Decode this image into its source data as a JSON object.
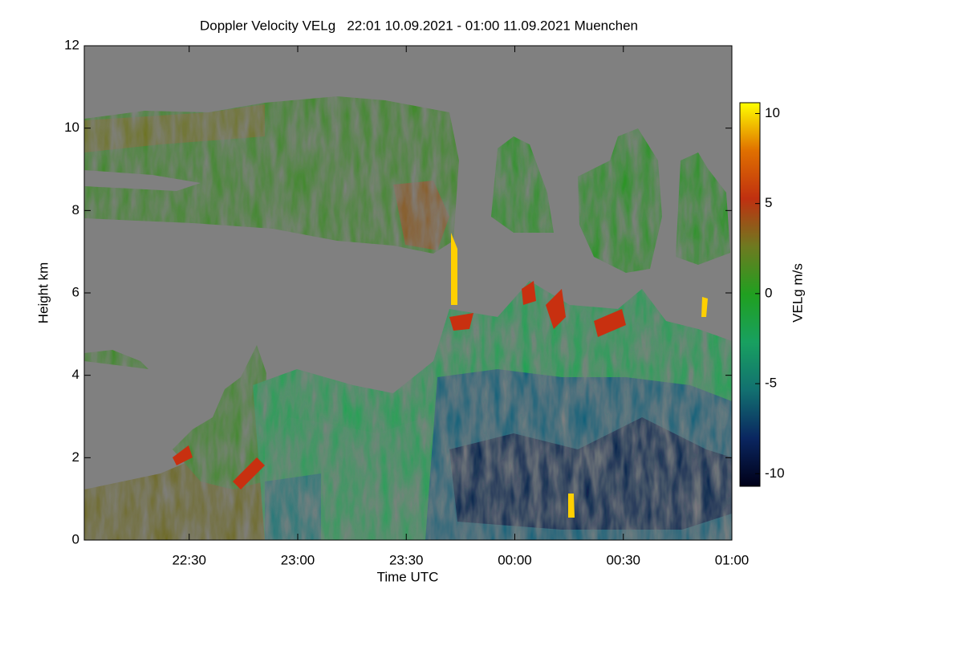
{
  "chart_data": {
    "type": "heatmap",
    "title": "Doppler Velocity VELg   22:01 10.09.2021 - 01:00 11.09.2021 Muenchen",
    "x_label": "Time UTC",
    "y_label": "Height km",
    "colorbar_label": "VELg m/s",
    "xlim": [
      1,
      180
    ],
    "xticks": [
      {
        "value": 30,
        "label": "22:30"
      },
      {
        "value": 60,
        "label": "23:00"
      },
      {
        "value": 90,
        "label": "23:30"
      },
      {
        "value": 120,
        "label": "00:00"
      },
      {
        "value": 150,
        "label": "00:30"
      },
      {
        "value": 180,
        "label": "01:00"
      }
    ],
    "ylim": [
      0,
      12
    ],
    "yticks": [
      0,
      2,
      4,
      6,
      8,
      10,
      12
    ],
    "clim": [
      -10.7,
      10.6
    ],
    "cticks": [
      -10,
      -5,
      0,
      5,
      10
    ],
    "colormap": [
      "#000018",
      "#0a2660",
      "#127070",
      "#18a060",
      "#20a020",
      "#6e7a20",
      "#c03010",
      "#e07000",
      "#ffff00"
    ],
    "background": "#808080"
  }
}
